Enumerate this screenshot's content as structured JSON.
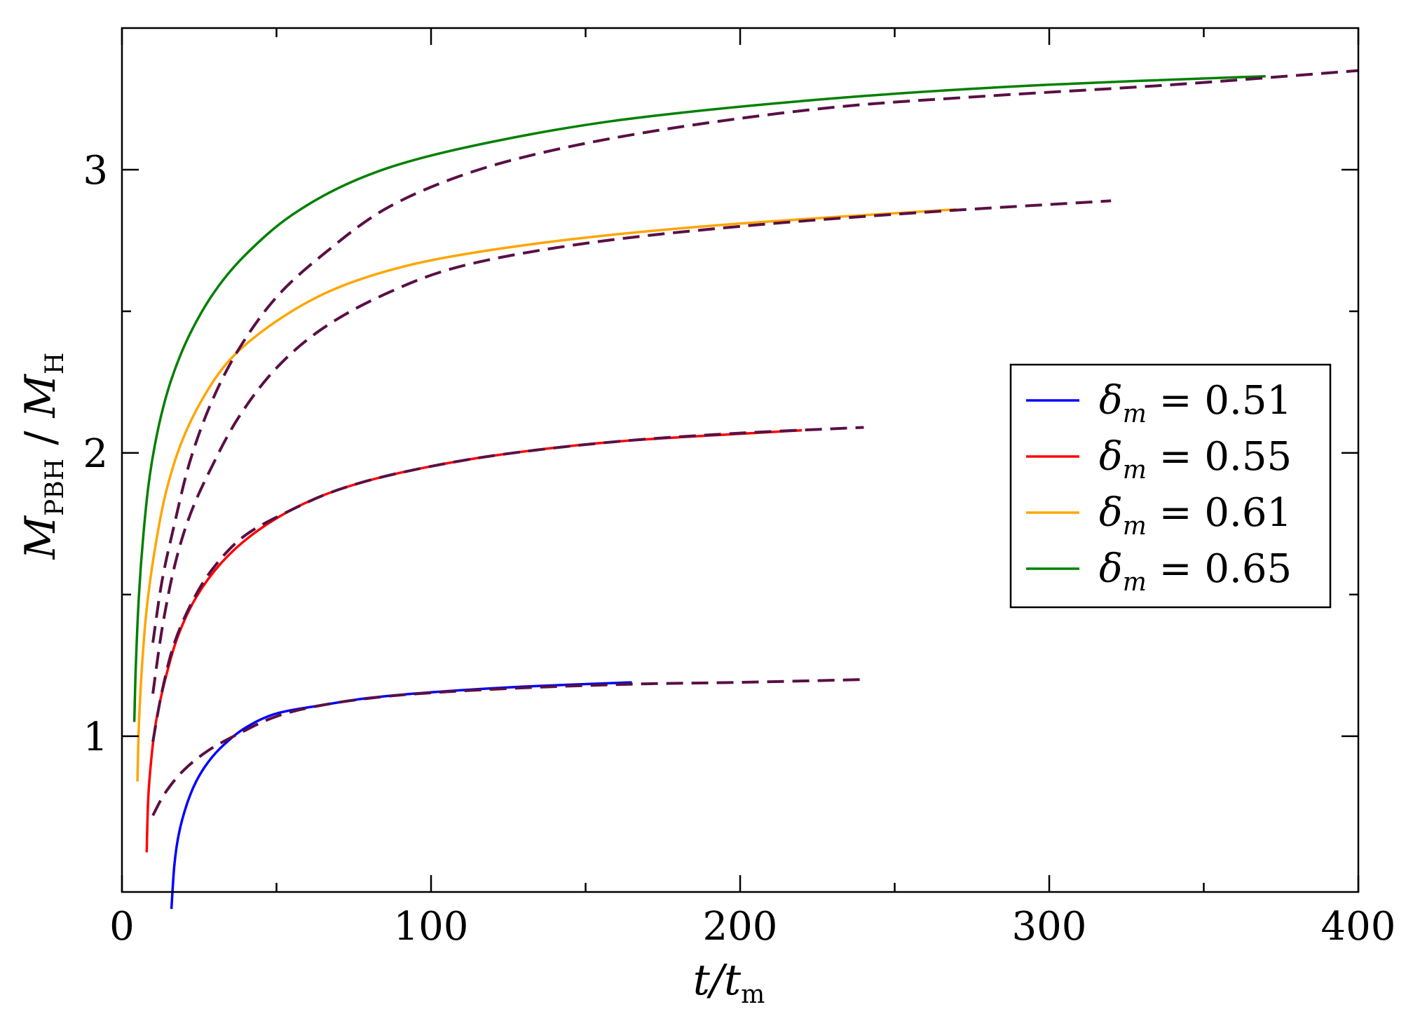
{
  "chart_data": {
    "type": "line",
    "xlabel": {
      "main": "t/t",
      "sub": "m"
    },
    "ylabel": {
      "m1": "M",
      "s1": "PBH",
      "sep": " / ",
      "m2": "M",
      "s2": "H"
    },
    "xlim": [
      0,
      400
    ],
    "ylim": [
      0.45,
      3.5
    ],
    "x_ticks": [
      0,
      100,
      200,
      300,
      400
    ],
    "x_tick_labels": [
      "0",
      "100",
      "200",
      "300",
      "400"
    ],
    "x_minor_ticks": [
      50,
      150,
      250,
      350
    ],
    "y_ticks": [
      1,
      2,
      3
    ],
    "y_tick_labels": [
      "1",
      "2",
      "3"
    ],
    "y_minor_ticks": [
      1.5,
      2.5
    ],
    "grid": false,
    "legend_position": "right",
    "series": [
      {
        "name": "δm = 0.51",
        "legend": {
          "sym": "δ",
          "sub": "m",
          "rest": " = 0.51"
        },
        "color": "#0000ff",
        "style": "solid",
        "points": [
          [
            16,
            0.39
          ],
          [
            17,
            0.55
          ],
          [
            18.5,
            0.66
          ],
          [
            21,
            0.76
          ],
          [
            24,
            0.84
          ],
          [
            28,
            0.91
          ],
          [
            33,
            0.97
          ],
          [
            40,
            1.03
          ],
          [
            50,
            1.08
          ],
          [
            65,
            1.11
          ],
          [
            80,
            1.135
          ],
          [
            100,
            1.155
          ],
          [
            130,
            1.175
          ],
          [
            165,
            1.19
          ]
        ]
      },
      {
        "name": "δm = 0.55",
        "legend": {
          "sym": "δ",
          "sub": "m",
          "rest": " = 0.55"
        },
        "color": "#ff0000",
        "style": "solid",
        "points": [
          [
            8,
            0.59
          ],
          [
            8.5,
            0.78
          ],
          [
            9.5,
            0.92
          ],
          [
            11,
            1.05
          ],
          [
            14,
            1.2
          ],
          [
            18,
            1.35
          ],
          [
            24,
            1.49
          ],
          [
            32,
            1.61
          ],
          [
            42,
            1.71
          ],
          [
            55,
            1.8
          ],
          [
            70,
            1.87
          ],
          [
            90,
            1.93
          ],
          [
            120,
            1.99
          ],
          [
            160,
            2.04
          ],
          [
            220,
            2.08
          ]
        ]
      },
      {
        "name": "δm = 0.61",
        "legend": {
          "sym": "δ",
          "sub": "m",
          "rest": " = 0.61"
        },
        "color": "#ffa500",
        "style": "solid",
        "points": [
          [
            5,
            0.84
          ],
          [
            5.5,
            1.05
          ],
          [
            6.5,
            1.25
          ],
          [
            8,
            1.45
          ],
          [
            10.5,
            1.65
          ],
          [
            14,
            1.85
          ],
          [
            19,
            2.03
          ],
          [
            26,
            2.19
          ],
          [
            35,
            2.33
          ],
          [
            48,
            2.45
          ],
          [
            65,
            2.56
          ],
          [
            85,
            2.64
          ],
          [
            110,
            2.7
          ],
          [
            150,
            2.76
          ],
          [
            200,
            2.81
          ],
          [
            270,
            2.86
          ]
        ]
      },
      {
        "name": "δm = 0.65",
        "legend": {
          "sym": "δ",
          "sub": "m",
          "rest": " = 0.65"
        },
        "color": "#008000",
        "style": "solid",
        "points": [
          [
            4,
            1.05
          ],
          [
            4.5,
            1.25
          ],
          [
            5.5,
            1.5
          ],
          [
            7,
            1.72
          ],
          [
            9,
            1.92
          ],
          [
            12,
            2.1
          ],
          [
            16,
            2.26
          ],
          [
            22,
            2.42
          ],
          [
            30,
            2.57
          ],
          [
            40,
            2.7
          ],
          [
            55,
            2.84
          ],
          [
            75,
            2.96
          ],
          [
            100,
            3.05
          ],
          [
            140,
            3.14
          ],
          [
            180,
            3.2
          ],
          [
            240,
            3.26
          ],
          [
            300,
            3.3
          ],
          [
            370,
            3.33
          ]
        ]
      },
      {
        "name": "",
        "color": "#5a0f45",
        "style": "dashed",
        "points": [
          [
            10,
            0.72
          ],
          [
            14,
            0.8
          ],
          [
            20,
            0.88
          ],
          [
            28,
            0.95
          ],
          [
            38,
            1.01
          ],
          [
            50,
            1.07
          ],
          [
            65,
            1.11
          ],
          [
            85,
            1.14
          ],
          [
            110,
            1.16
          ],
          [
            140,
            1.175
          ],
          [
            170,
            1.185
          ],
          [
            200,
            1.19
          ],
          [
            240,
            1.2
          ]
        ]
      },
      {
        "name": "",
        "color": "#5a0f45",
        "style": "dashed",
        "points": [
          [
            10,
            0.98
          ],
          [
            13,
            1.16
          ],
          [
            17,
            1.33
          ],
          [
            23,
            1.48
          ],
          [
            30,
            1.6
          ],
          [
            40,
            1.71
          ],
          [
            55,
            1.8
          ],
          [
            70,
            1.87
          ],
          [
            90,
            1.93
          ],
          [
            120,
            1.99
          ],
          [
            160,
            2.04
          ],
          [
            200,
            2.07
          ],
          [
            240,
            2.09
          ]
        ]
      },
      {
        "name": "",
        "color": "#5a0f45",
        "style": "dashed",
        "points": [
          [
            10,
            1.15
          ],
          [
            13,
            1.38
          ],
          [
            17,
            1.6
          ],
          [
            22,
            1.78
          ],
          [
            29,
            1.95
          ],
          [
            38,
            2.13
          ],
          [
            50,
            2.3
          ],
          [
            65,
            2.44
          ],
          [
            85,
            2.56
          ],
          [
            110,
            2.66
          ],
          [
            150,
            2.74
          ],
          [
            200,
            2.8
          ],
          [
            260,
            2.85
          ],
          [
            320,
            2.89
          ]
        ]
      },
      {
        "name": "",
        "color": "#5a0f45",
        "style": "dashed",
        "points": [
          [
            10,
            1.33
          ],
          [
            13,
            1.55
          ],
          [
            17,
            1.75
          ],
          [
            22,
            1.97
          ],
          [
            29,
            2.18
          ],
          [
            38,
            2.37
          ],
          [
            50,
            2.55
          ],
          [
            65,
            2.7
          ],
          [
            85,
            2.86
          ],
          [
            110,
            2.98
          ],
          [
            140,
            3.07
          ],
          [
            180,
            3.15
          ],
          [
            230,
            3.22
          ],
          [
            280,
            3.26
          ],
          [
            340,
            3.3
          ],
          [
            400,
            3.35
          ]
        ]
      }
    ]
  }
}
